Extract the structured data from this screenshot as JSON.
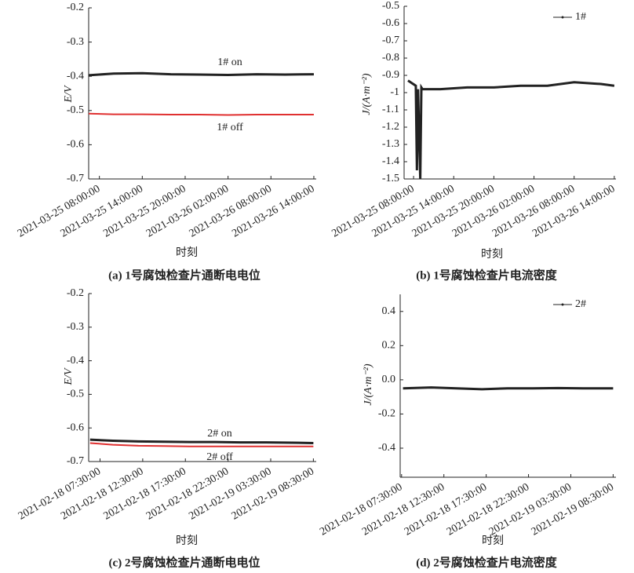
{
  "chart_data": [
    {
      "type": "line",
      "title": "(a) 1号腐蚀检查片通断电电位",
      "xlabel": "时刻",
      "ylabel": "E/V",
      "xlim": [
        "2021-03-25 06:30:00",
        "2021-03-26 14:20:00"
      ],
      "xticks": [
        "2021-03-25 08:00:00",
        "2021-03-25 14:00:00",
        "2021-03-25 20:00:00",
        "2021-03-26 02:00:00",
        "2021-03-26 08:00:00",
        "2021-03-26 14:00:00"
      ],
      "ylim": [
        -0.7,
        -0.2
      ],
      "yticks": [
        -0.7,
        -0.6,
        -0.5,
        -0.4,
        -0.3,
        -0.2
      ],
      "x": [
        "2021-03-25 06:30:00",
        "2021-03-25 10:00:00",
        "2021-03-25 14:00:00",
        "2021-03-25 18:00:00",
        "2021-03-25 22:00:00",
        "2021-03-26 02:00:00",
        "2021-03-26 06:00:00",
        "2021-03-26 10:00:00",
        "2021-03-26 14:00:00"
      ],
      "series": [
        {
          "color": "#222222",
          "values": [
            -0.397,
            -0.392,
            -0.391,
            -0.394,
            -0.395,
            -0.396,
            -0.394,
            -0.395,
            -0.394
          ]
        },
        {
          "color": "#e03030",
          "values": [
            -0.509,
            -0.511,
            -0.511,
            -0.512,
            -0.512,
            -0.513,
            -0.512,
            -0.512,
            -0.512
          ]
        }
      ],
      "annotations": [
        "1# on",
        "1# off"
      ]
    },
    {
      "type": "line",
      "title": "(b) 1号腐蚀检查片电流密度",
      "xlabel": "时刻",
      "ylabel": "J/(A·m⁻²)",
      "xlim": [
        "2021-03-25 06:35:00",
        "2021-03-26 14:15:00"
      ],
      "xticks": [
        "2021-03-25 08:00:00",
        "2021-03-25 14:00:00",
        "2021-03-25 20:00:00",
        "2021-03-26 02:00:00",
        "2021-03-26 08:00:00",
        "2021-03-26 14:00:00"
      ],
      "ylim": [
        -1.5,
        -0.5
      ],
      "yticks": [
        -1.5,
        -1.4,
        -1.3,
        -1.2,
        -1.1,
        -1.0,
        -0.9,
        -0.8,
        -0.7,
        -0.6,
        -0.5
      ],
      "x": [
        "2021-03-25 07:10:00",
        "2021-03-25 08:20:00",
        "2021-03-25 08:30:00",
        "2021-03-25 08:40:00",
        "2021-03-25 09:00:00",
        "2021-03-25 09:10:00",
        "2021-03-25 09:20:00",
        "2021-03-25 12:00:00",
        "2021-03-25 16:00:00",
        "2021-03-25 20:00:00",
        "2021-03-26 00:00:00",
        "2021-03-26 04:00:00",
        "2021-03-26 08:00:00",
        "2021-03-26 12:00:00",
        "2021-03-26 14:00:00"
      ],
      "series": [
        {
          "name": "1#",
          "color": "#222222",
          "values": [
            -0.93,
            -0.96,
            -1.45,
            -0.98,
            -1.5,
            -0.97,
            -0.98,
            -0.98,
            -0.97,
            -0.97,
            -0.96,
            -0.96,
            -0.94,
            -0.95,
            -0.96
          ]
        }
      ],
      "legend": "upper right"
    },
    {
      "type": "line",
      "title": "(c) 2号腐蚀检查片通断电电位",
      "xlabel": "时刻",
      "ylabel": "E/V",
      "xlim": [
        "2021-02-18 06:10:00",
        "2021-02-19 08:50:00"
      ],
      "xticks": [
        "2021-02-18 07:30:00",
        "2021-02-18 12:30:00",
        "2021-02-18 17:30:00",
        "2021-02-18 22:30:00",
        "2021-02-19 03:30:00",
        "2021-02-19 08:30:00"
      ],
      "ylim": [
        -0.7,
        -0.2
      ],
      "yticks": [
        -0.7,
        -0.6,
        -0.5,
        -0.4,
        -0.3,
        -0.2
      ],
      "x": [
        "2021-02-18 06:20:00",
        "2021-02-18 09:00:00",
        "2021-02-18 12:00:00",
        "2021-02-18 15:00:00",
        "2021-02-18 18:00:00",
        "2021-02-18 21:00:00",
        "2021-02-19 00:00:00",
        "2021-02-19 03:00:00",
        "2021-02-19 06:00:00",
        "2021-02-19 08:30:00"
      ],
      "series": [
        {
          "color": "#222222",
          "values": [
            -0.635,
            -0.638,
            -0.64,
            -0.641,
            -0.642,
            -0.642,
            -0.643,
            -0.643,
            -0.644,
            -0.645
          ]
        },
        {
          "color": "#e03030",
          "values": [
            -0.645,
            -0.65,
            -0.653,
            -0.654,
            -0.655,
            -0.655,
            -0.655,
            -0.655,
            -0.655,
            -0.655
          ]
        }
      ],
      "annotations": [
        "2# on",
        "2# off"
      ]
    },
    {
      "type": "line",
      "title": "(d) 2号腐蚀检查片电流密度",
      "xlabel": "时刻",
      "ylabel": "J/(A·m⁻²)",
      "xlim": [
        "2021-02-18 07:20:00",
        "2021-02-19 08:50:00"
      ],
      "xticks": [
        "2021-02-18 07:30:00",
        "2021-02-18 12:30:00",
        "2021-02-18 17:30:00",
        "2021-02-18 22:30:00",
        "2021-02-19 03:30:00",
        "2021-02-19 08:30:00"
      ],
      "ylim": [
        -0.57,
        0.5
      ],
      "yticks": [
        -0.4,
        -0.2,
        {
          "value": 0,
          "label": "0.0"
        },
        0.2,
        0.4
      ],
      "x": [
        "2021-02-18 07:40:00",
        "2021-02-18 11:00:00",
        "2021-02-18 14:00:00",
        "2021-02-18 17:00:00",
        "2021-02-18 20:00:00",
        "2021-02-18 23:00:00",
        "2021-02-19 02:00:00",
        "2021-02-19 05:00:00",
        "2021-02-19 08:30:00"
      ],
      "series": [
        {
          "name": "2#",
          "color": "#222222",
          "values": [
            -0.05,
            -0.045,
            -0.05,
            -0.055,
            -0.05,
            -0.05,
            -0.048,
            -0.05,
            -0.05
          ]
        }
      ],
      "legend": "upper right"
    }
  ]
}
